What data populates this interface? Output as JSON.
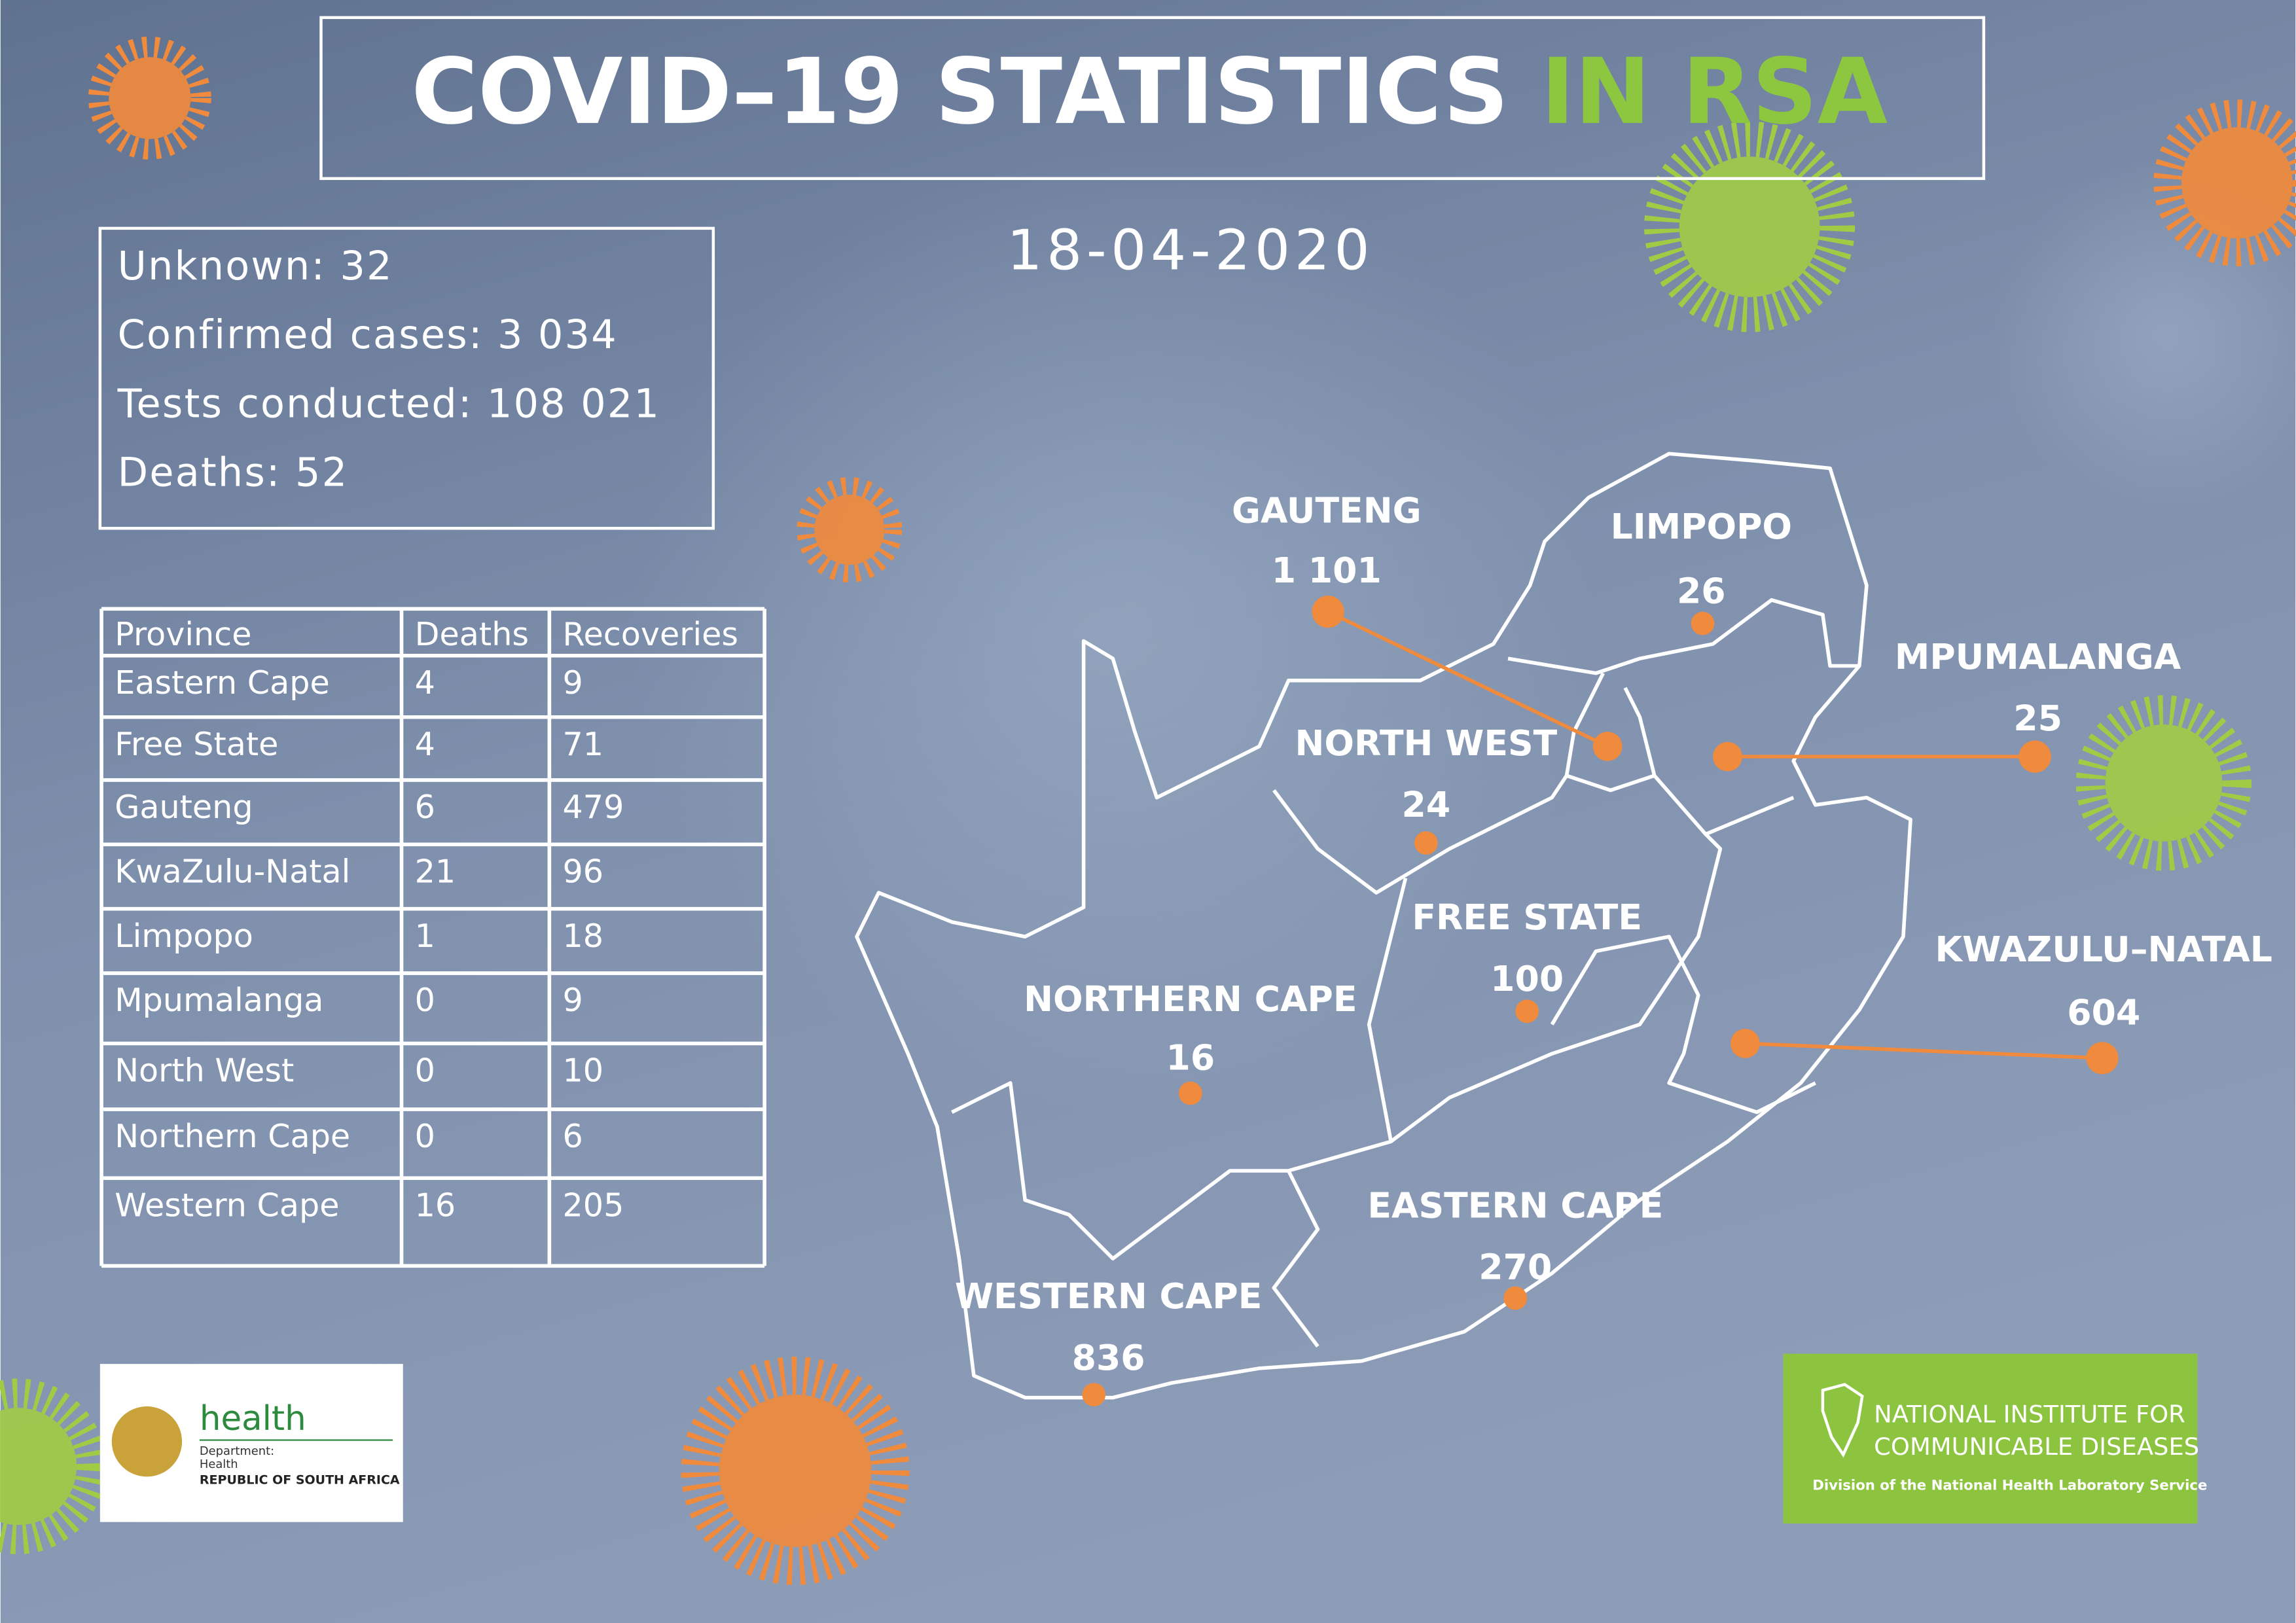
{
  "header": {
    "title_main": "COVID–19 STATISTICS",
    "title_accent": "IN RSA",
    "date": "18-04-2020"
  },
  "summary": [
    "Unknown: 32",
    "Confirmed cases: 3 034",
    "Tests conducted: 108 021",
    "Deaths: 52"
  ],
  "table": {
    "header": [
      "Province",
      "Deaths",
      "Recoveries"
    ],
    "rows": [
      [
        "Eastern Cape",
        "4",
        "9"
      ],
      [
        "Free State",
        "4",
        "71"
      ],
      [
        "Gauteng",
        "6",
        "479"
      ],
      [
        "KwaZulu-Natal",
        "21",
        "96"
      ],
      [
        "Limpopo",
        "1",
        "18"
      ],
      [
        "Mpumalanga",
        "0",
        "9"
      ],
      [
        "North West",
        "0",
        "10"
      ],
      [
        "Northern Cape",
        "0",
        "6"
      ],
      [
        "Western Cape",
        "16",
        "205"
      ]
    ]
  },
  "map": {
    "provinces": [
      {
        "name": "GAUTENG",
        "cases": "1 101"
      },
      {
        "name": "LIMPOPO",
        "cases": "26"
      },
      {
        "name": "MPUMALANGA",
        "cases": "25"
      },
      {
        "name": "NORTH WEST",
        "cases": "24"
      },
      {
        "name": "FREE STATE",
        "cases": "100"
      },
      {
        "name": "KWAZULU–NATAL",
        "cases": "604"
      },
      {
        "name": "NORTHERN CAPE",
        "cases": "16"
      },
      {
        "name": "EASTERN CAPE",
        "cases": "270"
      },
      {
        "name": "WESTERN CAPE",
        "cases": "836"
      }
    ]
  },
  "logos": {
    "health": {
      "name": "health",
      "line1": "Department:",
      "line2": "Health",
      "line3": "REPUBLIC OF SOUTH AFRICA"
    },
    "nicd": {
      "line1": "NATIONAL INSTITUTE FOR",
      "line2": "COMMUNICABLE DISEASES",
      "line3": "Division of the National Health Laboratory Service"
    }
  }
}
